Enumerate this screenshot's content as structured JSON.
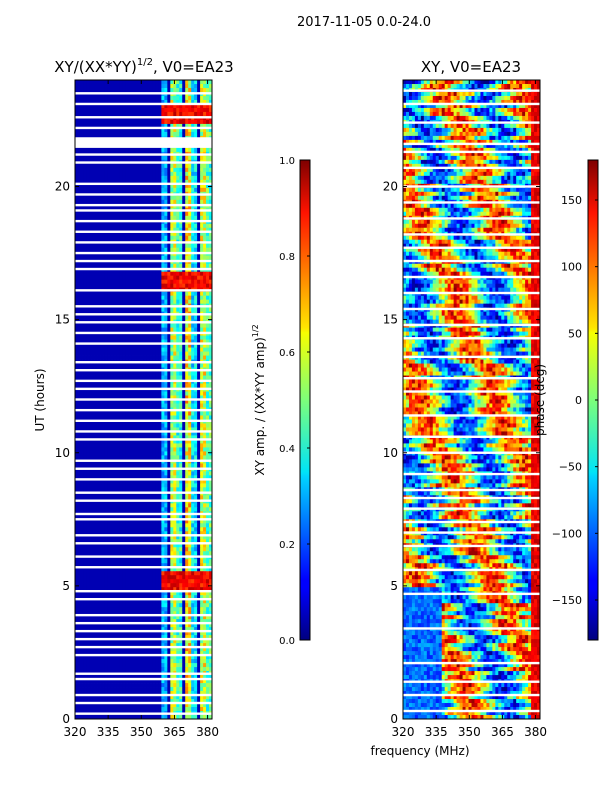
{
  "figure": {
    "suptitle": "2017-11-05 0.0-24.0",
    "shared_xlabel": "frequency (MHz)"
  },
  "chart_data": [
    {
      "type": "heatmap",
      "title_main": "XY/(XX*YY)",
      "title_sup": "1/2",
      "title_suffix": ", V0=EA23",
      "xlabel": "frequency (MHz)",
      "ylabel": "UT (hours)",
      "xlim": [
        320,
        382
      ],
      "ylim": [
        0,
        24
      ],
      "xticks": [
        320,
        335,
        350,
        365,
        380
      ],
      "yticks": [
        0,
        5,
        10,
        15,
        20
      ],
      "colormap": "jet",
      "colorbar": {
        "label_main": "XY amp. / (XX*YY amp)",
        "label_sup": "1/2",
        "range": [
          0.0,
          1.0
        ],
        "ticks": [
          "0.0",
          "0.2",
          "0.4",
          "0.6",
          "0.8",
          "1.0"
        ],
        "tick_values": [
          0.0,
          0.2,
          0.4,
          0.6,
          0.8,
          1.0
        ]
      },
      "description_values": {
        "background_level": 0.05,
        "band_frequencies_mhz": [
          361,
          364,
          367,
          371,
          374,
          378,
          381
        ],
        "band_levels": [
          0.3,
          0.55,
          0.42,
          0.62,
          0.35,
          0.58,
          0.45
        ],
        "peak_ut_hours": [
          5.2,
          16.4,
          22.7
        ],
        "peak_level": 0.95
      },
      "blank_ut_hours": [
        0.2,
        0.6,
        0.9,
        1.5,
        1.7,
        2.4,
        2.7,
        3.0,
        3.3,
        3.6,
        3.9,
        4.5,
        4.8,
        5.7,
        6.1,
        6.6,
        6.9,
        7.5,
        7.7,
        8.2,
        8.5,
        9.0,
        9.4,
        9.7,
        10.5,
        10.8,
        11.2,
        11.6,
        12.0,
        12.4,
        12.7,
        13.1,
        13.4,
        14.1,
        14.5,
        14.9,
        15.2,
        15.5,
        16.1,
        16.9,
        17.2,
        17.5,
        17.9,
        18.3,
        18.7,
        19.1,
        19.3,
        19.7,
        20.1,
        20.9,
        21.2,
        22.2,
        22.6,
        23.1,
        23.5
      ]
    },
    {
      "type": "heatmap",
      "title_main": "XY, V0=EA23",
      "xlabel": "frequency (MHz)",
      "ylabel": "",
      "xlim": [
        320,
        382
      ],
      "ylim": [
        0,
        24
      ],
      "xticks": [
        320,
        335,
        350,
        365,
        380
      ],
      "yticks": [
        0,
        5,
        10,
        15,
        20
      ],
      "colormap": "jet",
      "colorbar": {
        "label_main": "phase (deg)",
        "range": [
          -180,
          180
        ],
        "ticks": [
          "−150",
          "−100",
          "−50",
          "0",
          "50",
          "100",
          "150"
        ],
        "tick_values": [
          -150,
          -100,
          -50,
          0,
          50,
          100,
          150
        ]
      },
      "description_values": {
        "phase_range_deg": [
          -180,
          180
        ]
      },
      "blank_ut_hours": [
        0.3,
        0.9,
        1.4,
        2.1,
        3.4,
        4.7,
        5.6,
        6.5,
        7.0,
        7.4,
        7.9,
        8.3,
        8.6,
        9.2,
        10.0,
        10.6,
        11.4,
        12.3,
        12.8,
        13.6,
        14.3,
        14.8,
        15.4,
        16.0,
        16.6,
        17.2,
        17.7,
        18.2,
        18.8,
        19.4,
        20.0,
        20.7,
        21.3,
        21.6,
        22.4,
        23.1,
        23.6
      ]
    }
  ]
}
